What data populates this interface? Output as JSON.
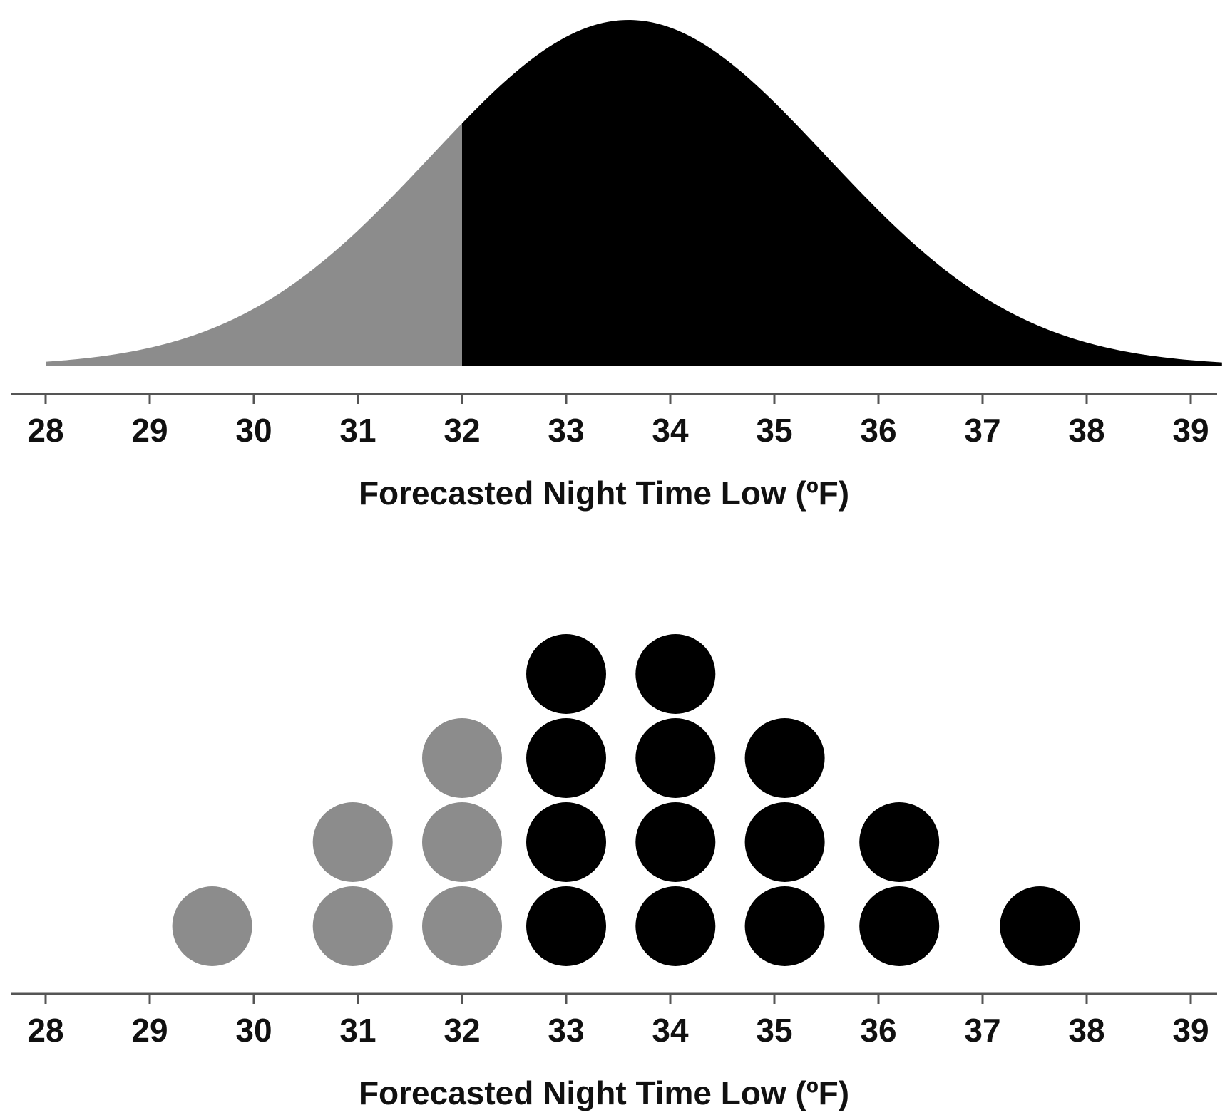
{
  "chart_data": [
    {
      "type": "area",
      "title": "",
      "xlabel": "Forecasted Night Time Low (ºF)",
      "ylabel": "",
      "x_ticks": [
        "28",
        "29",
        "30",
        "31",
        "32",
        "33",
        "34",
        "35",
        "36",
        "37",
        "38",
        "39"
      ],
      "xlim": [
        28,
        39.3
      ],
      "distribution": {
        "kind": "normal",
        "mean": 33.6,
        "sd": 1.9
      },
      "threshold": 32,
      "regions": [
        {
          "range": [
            28,
            32
          ],
          "color": "#8c8c8c"
        },
        {
          "range": [
            32,
            39.3
          ],
          "color": "#000000"
        }
      ],
      "grid": false,
      "legend": "none"
    },
    {
      "type": "scatter",
      "title": "",
      "xlabel": "Forecasted Night Time Low (ºF)",
      "ylabel": "",
      "x_ticks": [
        "28",
        "29",
        "30",
        "31",
        "32",
        "33",
        "34",
        "35",
        "36",
        "37",
        "38",
        "39"
      ],
      "xlim": [
        28,
        39.3
      ],
      "threshold": 32,
      "colors": {
        "below_or_at_threshold": "#8c8c8c",
        "above_threshold": "#000000"
      },
      "stacks": [
        {
          "x": 29.6,
          "count": 1,
          "color": "#8c8c8c"
        },
        {
          "x": 30.95,
          "count": 2,
          "color": "#8c8c8c"
        },
        {
          "x": 32.0,
          "count": 3,
          "color": "#8c8c8c"
        },
        {
          "x": 33.0,
          "count": 4,
          "color": "#000000"
        },
        {
          "x": 34.05,
          "count": 4,
          "color": "#000000"
        },
        {
          "x": 35.1,
          "count": 3,
          "color": "#000000"
        },
        {
          "x": 36.2,
          "count": 2,
          "color": "#000000"
        },
        {
          "x": 37.55,
          "count": 1,
          "color": "#000000"
        }
      ],
      "grid": false,
      "legend": "none"
    }
  ]
}
